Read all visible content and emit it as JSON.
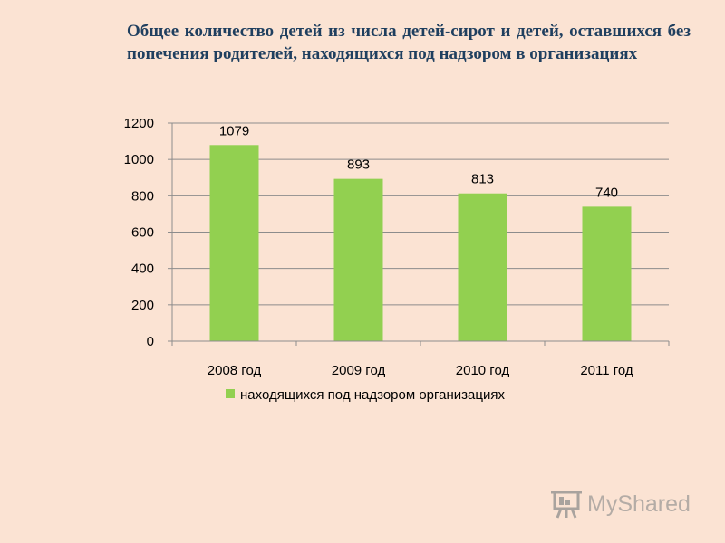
{
  "slide": {
    "title": "Общее количество детей из числа детей-сирот и детей, оставшихся без попечения родителей, находящихся под надзором в организациях"
  },
  "chart_data": {
    "type": "bar",
    "categories": [
      "2008 год",
      "2009 год",
      "2010 год",
      "2011 год"
    ],
    "series": [
      {
        "name": "находящихся под надзором организациях",
        "values": [
          1079,
          893,
          813,
          740
        ],
        "color": "#92d050"
      }
    ],
    "ylim": [
      0,
      1200
    ],
    "yticks": [
      0,
      200,
      400,
      600,
      800,
      1000,
      1200
    ],
    "grid": true,
    "legend": "bottom",
    "data_labels": true
  },
  "watermark": {
    "text": "MyShared",
    "icon": "presentation-board-icon"
  },
  "colors": {
    "background": "#fbe3d3",
    "title": "#1f3f5f",
    "bar": "#92d050",
    "grid": "#8c8c8c"
  }
}
